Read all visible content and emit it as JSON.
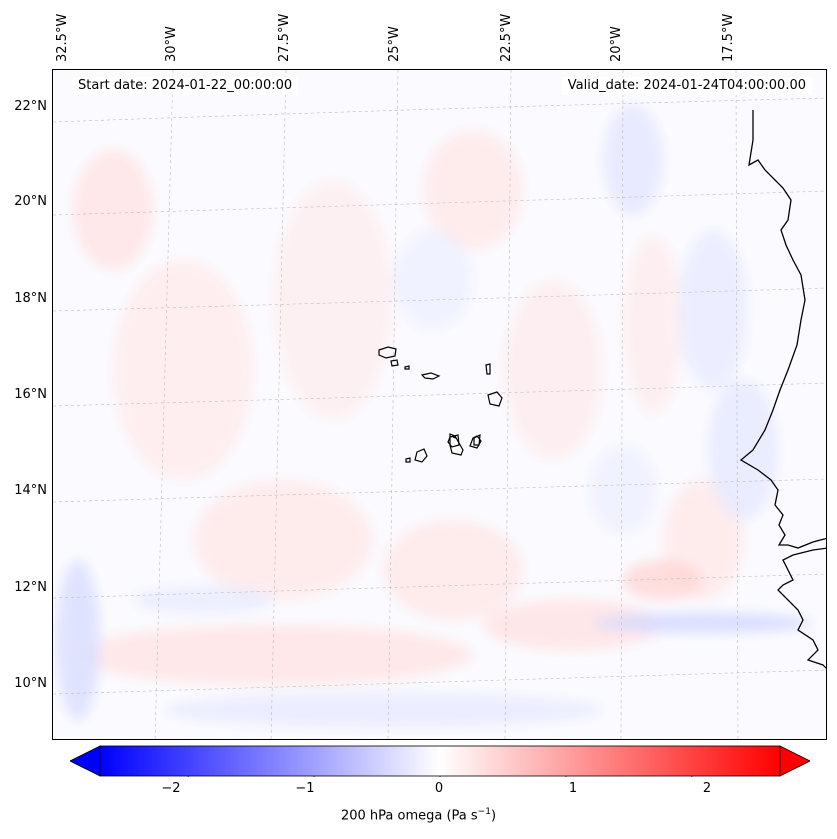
{
  "header": {
    "start_date": "Start date: 2024-01-22_00:00:00",
    "valid_date": "Valid_date: 2024-01-24T04:00:00.00"
  },
  "map": {
    "projection": "Lambert conformal",
    "lon_labels": [
      "32.5°W",
      "30°W",
      "27.5°W",
      "25°W",
      "22.5°W",
      "20°W",
      "17.5°W"
    ],
    "lat_labels": [
      "22°N",
      "20°N",
      "18°N",
      "16°N",
      "14°N",
      "12°N",
      "10°N"
    ],
    "field": "200 hPa omega",
    "features": [
      "Cape Verde islands",
      "West African coastline"
    ]
  },
  "colorbar": {
    "label": "200 hPa omega (Pa s",
    "label_exp": "−1",
    "label_close": ")",
    "min": -2.7,
    "max": 2.7,
    "ticks": [
      "−2",
      "−1",
      "0",
      "1",
      "2"
    ],
    "tick_values": [
      -2,
      -1,
      0,
      1,
      2
    ],
    "colormap": "bwr",
    "extend": "both",
    "colors": {
      "negative": "#0000ff",
      "zero": "#ffffff",
      "positive": "#ff0000"
    }
  }
}
